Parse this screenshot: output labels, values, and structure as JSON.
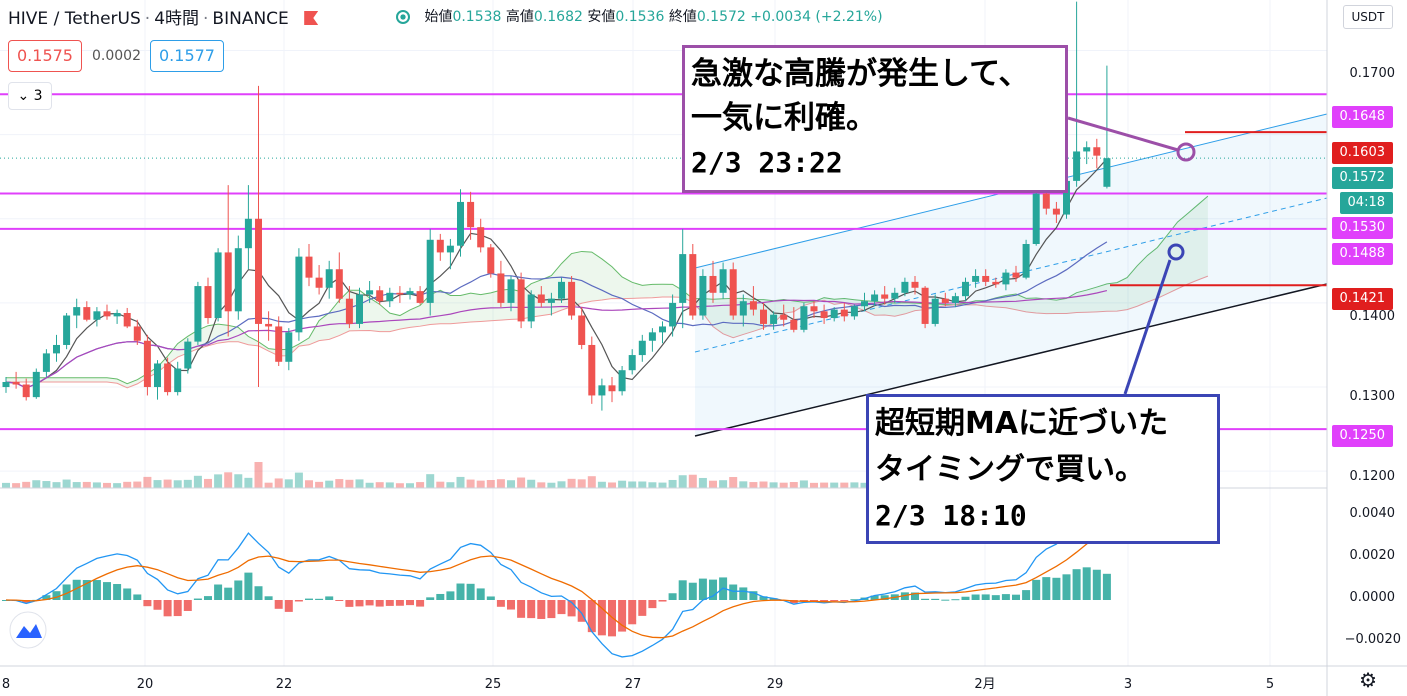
{
  "header": {
    "symbol": "HIVE / TetherUS",
    "interval": "4時間",
    "exchange": "BINANCE",
    "ohlc": {
      "open_label": "始値",
      "open": "0.1538",
      "high_label": "高値",
      "high": "0.1682",
      "low_label": "安値",
      "low": "0.1536",
      "close_label": "終値",
      "close": "0.1572",
      "change": "+0.0034 (+2.21%)"
    }
  },
  "trade_panel": {
    "sell": "0.1575",
    "spread": "0.0002",
    "buy": "0.1577"
  },
  "indicator_count": "3",
  "currency": "USDT",
  "countdown": "04:18",
  "annotations": {
    "sell_note": {
      "lines": [
        "急激な高騰が発生して、",
        "一気に利確。",
        "2/3 23:22"
      ]
    },
    "buy_note": {
      "lines": [
        "超短期MAに近づいた",
        "タイミングで買い。",
        "2/3 18:10"
      ]
    }
  },
  "price_axis": [
    "0.1700",
    "0.1400",
    "0.1300",
    "0.1200"
  ],
  "macd_axis": [
    "0.0040",
    "0.0020",
    "0.0000",
    "−0.0020"
  ],
  "time_axis": [
    "8",
    "20",
    "22",
    "25",
    "27",
    "29",
    "2月",
    "3",
    "5"
  ],
  "price_tags": [
    {
      "text": "0.1648",
      "color": "#e040fb"
    },
    {
      "text": "0.1603",
      "color": "#e01e1e"
    },
    {
      "text": "0.1572",
      "color": "#26a69a"
    },
    {
      "text": "0.1530",
      "color": "#e040fb"
    },
    {
      "text": "0.1488",
      "color": "#e040fb"
    },
    {
      "text": "0.1421",
      "color": "#e01e1e"
    },
    {
      "text": "0.1250",
      "color": "#e040fb"
    }
  ],
  "colors": {
    "up": "#26a69a",
    "down": "#ef5350",
    "magenta": "#e040fb",
    "red_line": "#e01e1e",
    "sell_box": "#9c4fa8",
    "buy_box": "#3b45b5",
    "channel": "#2e9ee8"
  },
  "chart_data": {
    "type": "candlestick",
    "interval": "4時間",
    "last": {
      "open": 0.1538,
      "high": 0.1682,
      "low": 0.1536,
      "close": 0.1572
    },
    "horizontal_levels": [
      0.1648,
      0.1603,
      0.153,
      0.1488,
      0.1421,
      0.125
    ],
    "ylim": [
      0.118,
      0.176
    ],
    "x_ticks": [
      "8",
      "20",
      "22",
      "25",
      "27",
      "29",
      "2月",
      "3",
      "5"
    ],
    "candles": [
      [
        0.13,
        0.1312,
        0.1293,
        0.1306
      ],
      [
        0.1306,
        0.1318,
        0.1298,
        0.1303
      ],
      [
        0.1303,
        0.131,
        0.1284,
        0.1288
      ],
      [
        0.1288,
        0.1322,
        0.1286,
        0.1318
      ],
      [
        0.1318,
        0.1345,
        0.1312,
        0.134
      ],
      [
        0.134,
        0.1362,
        0.133,
        0.135
      ],
      [
        0.135,
        0.1388,
        0.1345,
        0.1385
      ],
      [
        0.1385,
        0.1405,
        0.137,
        0.1395
      ],
      [
        0.1395,
        0.1402,
        0.1378,
        0.138
      ],
      [
        0.138,
        0.1395,
        0.1372,
        0.139
      ],
      [
        0.139,
        0.1398,
        0.138,
        0.1384
      ],
      [
        0.1384,
        0.1392,
        0.1375,
        0.1388
      ],
      [
        0.1388,
        0.1394,
        0.137,
        0.1372
      ],
      [
        0.1372,
        0.138,
        0.135,
        0.1355
      ],
      [
        0.1355,
        0.1362,
        0.129,
        0.13
      ],
      [
        0.13,
        0.1332,
        0.1285,
        0.1328
      ],
      [
        0.1328,
        0.1335,
        0.129,
        0.1294
      ],
      [
        0.1294,
        0.133,
        0.129,
        0.1322
      ],
      [
        0.1322,
        0.1358,
        0.1316,
        0.1354
      ],
      [
        0.1354,
        0.1425,
        0.135,
        0.142
      ],
      [
        0.142,
        0.143,
        0.1375,
        0.1382
      ],
      [
        0.1382,
        0.1465,
        0.1378,
        0.146
      ],
      [
        0.146,
        0.154,
        0.136,
        0.139
      ],
      [
        0.139,
        0.148,
        0.138,
        0.1465
      ],
      [
        0.1465,
        0.154,
        0.144,
        0.15
      ],
      [
        0.15,
        0.1658,
        0.13,
        0.1375
      ],
      [
        0.1375,
        0.139,
        0.1355,
        0.1372
      ],
      [
        0.1372,
        0.1384,
        0.1325,
        0.133
      ],
      [
        0.133,
        0.137,
        0.132,
        0.1365
      ],
      [
        0.1365,
        0.1465,
        0.1355,
        0.1455
      ],
      [
        0.1455,
        0.147,
        0.142,
        0.143
      ],
      [
        0.143,
        0.1445,
        0.141,
        0.1418
      ],
      [
        0.1418,
        0.145,
        0.1405,
        0.144
      ],
      [
        0.144,
        0.146,
        0.14,
        0.1405
      ],
      [
        0.1405,
        0.142,
        0.137,
        0.1375
      ],
      [
        0.1375,
        0.1418,
        0.137,
        0.141
      ],
      [
        0.141,
        0.1426,
        0.14,
        0.1415
      ],
      [
        0.1415,
        0.142,
        0.1398,
        0.1402
      ],
      [
        0.1402,
        0.1418,
        0.1395,
        0.1412
      ],
      [
        0.1412,
        0.142,
        0.14,
        0.141
      ],
      [
        0.141,
        0.1418,
        0.1404,
        0.1414
      ],
      [
        0.1414,
        0.142,
        0.1398,
        0.14
      ],
      [
        0.14,
        0.1488,
        0.1385,
        0.1475
      ],
      [
        0.1475,
        0.1482,
        0.145,
        0.146
      ],
      [
        0.146,
        0.1476,
        0.144,
        0.1468
      ],
      [
        0.1468,
        0.1535,
        0.1455,
        0.152
      ],
      [
        0.152,
        0.1532,
        0.1475,
        0.149
      ],
      [
        0.149,
        0.15,
        0.146,
        0.1466
      ],
      [
        0.1466,
        0.147,
        0.143,
        0.1435
      ],
      [
        0.1435,
        0.145,
        0.1395,
        0.14
      ],
      [
        0.14,
        0.1432,
        0.139,
        0.1428
      ],
      [
        0.1428,
        0.1436,
        0.137,
        0.1378
      ],
      [
        0.1378,
        0.1415,
        0.137,
        0.141
      ],
      [
        0.141,
        0.142,
        0.1395,
        0.14
      ],
      [
        0.14,
        0.1412,
        0.1385,
        0.1405
      ],
      [
        0.1405,
        0.143,
        0.14,
        0.1425
      ],
      [
        0.1425,
        0.1432,
        0.138,
        0.1385
      ],
      [
        0.1385,
        0.1395,
        0.1345,
        0.135
      ],
      [
        0.135,
        0.136,
        0.128,
        0.129
      ],
      [
        0.129,
        0.131,
        0.1272,
        0.1302
      ],
      [
        0.1302,
        0.1312,
        0.1282,
        0.1295
      ],
      [
        0.1295,
        0.1325,
        0.129,
        0.132
      ],
      [
        0.132,
        0.1345,
        0.1315,
        0.1338
      ],
      [
        0.1338,
        0.1362,
        0.133,
        0.1355
      ],
      [
        0.1355,
        0.137,
        0.1342,
        0.1365
      ],
      [
        0.1365,
        0.1378,
        0.1352,
        0.1372
      ],
      [
        0.1372,
        0.141,
        0.136,
        0.14
      ],
      [
        0.14,
        0.1488,
        0.137,
        0.1458
      ],
      [
        0.1458,
        0.147,
        0.138,
        0.1385
      ],
      [
        0.1385,
        0.144,
        0.138,
        0.1432
      ],
      [
        0.1432,
        0.145,
        0.14,
        0.1412
      ],
      [
        0.1412,
        0.1448,
        0.1405,
        0.144
      ],
      [
        0.144,
        0.1448,
        0.138,
        0.1385
      ],
      [
        0.1385,
        0.141,
        0.1372,
        0.1402
      ],
      [
        0.1402,
        0.142,
        0.1385,
        0.1392
      ],
      [
        0.1392,
        0.14,
        0.1368,
        0.1375
      ],
      [
        0.1375,
        0.139,
        0.1368,
        0.1386
      ],
      [
        0.1386,
        0.1398,
        0.1372,
        0.138
      ],
      [
        0.138,
        0.1395,
        0.1365,
        0.1368
      ],
      [
        0.1368,
        0.14,
        0.1365,
        0.1396
      ],
      [
        0.1396,
        0.1402,
        0.1382,
        0.139
      ],
      [
        0.139,
        0.1398,
        0.1375,
        0.1382
      ],
      [
        0.1382,
        0.1395,
        0.1378,
        0.1392
      ],
      [
        0.1392,
        0.14,
        0.1378,
        0.1384
      ],
      [
        0.1384,
        0.1398,
        0.138,
        0.1396
      ],
      [
        0.1396,
        0.1412,
        0.139,
        0.1402
      ],
      [
        0.1402,
        0.1415,
        0.1396,
        0.141
      ],
      [
        0.141,
        0.142,
        0.1398,
        0.1405
      ],
      [
        0.1405,
        0.1418,
        0.14,
        0.1412
      ],
      [
        0.1412,
        0.143,
        0.1408,
        0.1425
      ],
      [
        0.1425,
        0.1432,
        0.141,
        0.1418
      ],
      [
        0.1418,
        0.142,
        0.137,
        0.1375
      ],
      [
        0.1375,
        0.141,
        0.1372,
        0.1405
      ],
      [
        0.1405,
        0.1412,
        0.1396,
        0.14
      ],
      [
        0.14,
        0.1412,
        0.1395,
        0.1408
      ],
      [
        0.1408,
        0.143,
        0.1402,
        0.1425
      ],
      [
        0.1425,
        0.144,
        0.1418,
        0.1432
      ],
      [
        0.1432,
        0.144,
        0.142,
        0.1425
      ],
      [
        0.1425,
        0.143,
        0.1418,
        0.1422
      ],
      [
        0.1422,
        0.144,
        0.1415,
        0.1436
      ],
      [
        0.1436,
        0.1444,
        0.1425,
        0.143
      ],
      [
        0.143,
        0.1475,
        0.1428,
        0.147
      ],
      [
        0.147,
        0.154,
        0.1468,
        0.153
      ],
      [
        0.153,
        0.1538,
        0.1505,
        0.1512
      ],
      [
        0.1512,
        0.152,
        0.1495,
        0.1505
      ],
      [
        0.1505,
        0.156,
        0.15,
        0.1545
      ],
      [
        0.1545,
        0.1758,
        0.1538,
        0.158
      ],
      [
        0.158,
        0.1592,
        0.1565,
        0.1585
      ],
      [
        0.1585,
        0.1595,
        0.156,
        0.1575
      ],
      [
        0.1538,
        0.1682,
        0.1536,
        0.1572
      ]
    ]
  }
}
